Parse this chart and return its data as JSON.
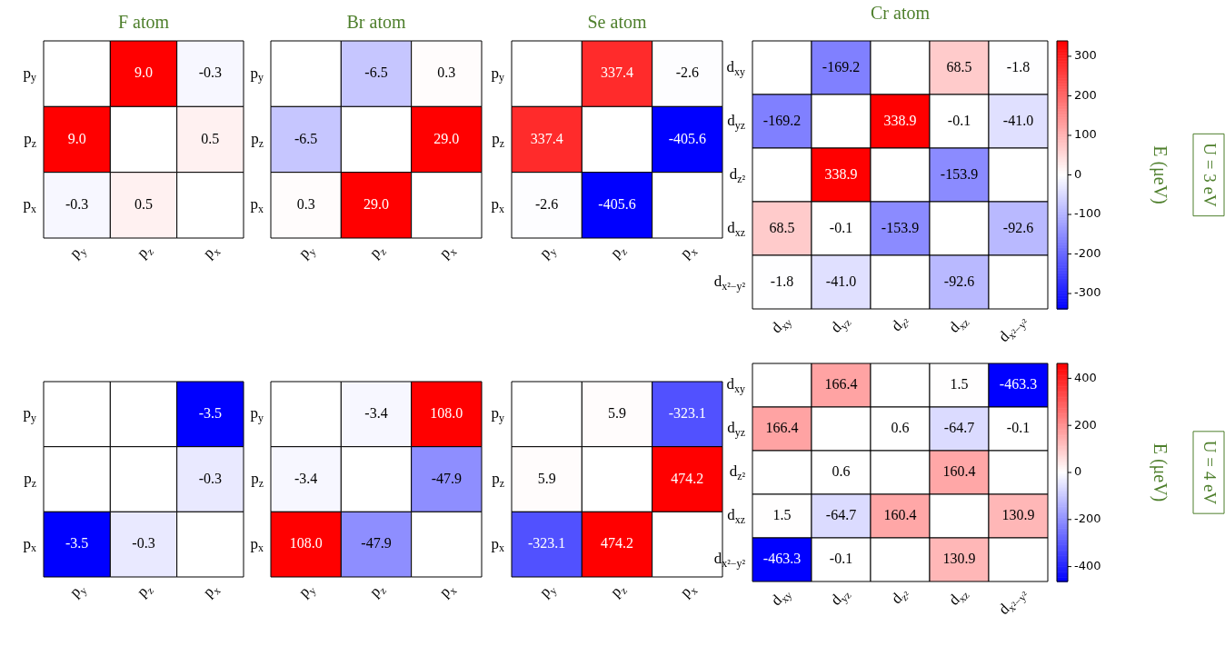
{
  "chart_data": [
    {
      "type": "heatmap",
      "title": "F atom",
      "categories": [
        "p$_{y}$",
        "p$_{z}$",
        "p$_{x}$"
      ],
      "y_categories": [
        "p$_{y}$",
        "p$_{z}$",
        "p$_{x}$"
      ],
      "cells": [
        [
          null,
          9.0,
          -0.3
        ],
        [
          9.0,
          null,
          0.5
        ],
        [
          -0.3,
          0.5,
          null
        ]
      ],
      "cell_labels": [
        [
          null,
          "9.0",
          "-0.3"
        ],
        [
          "9.0",
          null,
          "0.5"
        ],
        [
          "-0.3",
          "0.5",
          null
        ]
      ]
    },
    {
      "type": "heatmap",
      "title": "Br atom",
      "categories": [
        "p$_{y}$",
        "p$_{z}$",
        "p$_{x}$"
      ],
      "y_categories": [
        "p$_{y}$",
        "p$_{z}$",
        "p$_{x}$"
      ],
      "cells": [
        [
          null,
          -6.5,
          0.3
        ],
        [
          -6.5,
          null,
          29.0
        ],
        [
          0.3,
          29.0,
          null
        ]
      ],
      "cell_labels": [
        [
          null,
          "-6.5",
          "0.3"
        ],
        [
          "-6.5",
          null,
          "29.0"
        ],
        [
          "0.3",
          "29.0",
          null
        ]
      ]
    },
    {
      "type": "heatmap",
      "title": "Se atom",
      "categories": [
        "p$_{y}$",
        "p$_{z}$",
        "p$_{x}$"
      ],
      "y_categories": [
        "p$_{y}$",
        "p$_{z}$",
        "p$_{x}$"
      ],
      "cells": [
        [
          null,
          337.4,
          -2.6
        ],
        [
          337.4,
          null,
          -405.6
        ],
        [
          -2.6,
          -405.6,
          null
        ]
      ],
      "cell_labels": [
        [
          null,
          "337.4",
          "-2.6"
        ],
        [
          "337.4",
          null,
          "-405.6"
        ],
        [
          "-2.6",
          "-405.6",
          null
        ]
      ]
    },
    {
      "type": "heatmap",
      "title": "Cr atom",
      "categories": [
        "d$_{xy}$",
        "d$_{yz}$",
        "d$_{z²}$",
        "d$_{xz}$",
        "d$_{x²−y²}$"
      ],
      "y_categories": [
        "d$_{xy}$",
        "d$_{yz}$",
        "d$_{z²}$",
        "d$_{xz}$",
        "d$_{x²−y²}$"
      ],
      "cells": [
        [
          null,
          -169.2,
          null,
          68.5,
          -1.8
        ],
        [
          -169.2,
          null,
          338.9,
          -0.1,
          -41.0
        ],
        [
          null,
          338.9,
          null,
          -153.9,
          null
        ],
        [
          68.5,
          -0.1,
          -153.9,
          null,
          -92.6
        ],
        [
          -1.8,
          -41.0,
          null,
          -92.6,
          null
        ]
      ],
      "cell_labels": [
        [
          null,
          "-169.2",
          null,
          "68.5",
          "-1.8"
        ],
        [
          "-169.2",
          null,
          "338.9",
          "-0.1",
          "-41.0"
        ],
        [
          null,
          "338.9",
          null,
          "-153.9",
          null
        ],
        [
          "68.5",
          "-0.1",
          "-153.9",
          null,
          "-92.6"
        ],
        [
          "-1.8",
          "-41.0",
          null,
          "-92.6",
          null
        ]
      ],
      "clim": [
        -338.9,
        338.9
      ],
      "cticks": [
        -300,
        -200,
        -100,
        0,
        100,
        200,
        300
      ],
      "clabel": "E (μeV)",
      "annotations": [
        "U = 3 eV"
      ]
    },
    {
      "type": "heatmap",
      "categories": [
        "p$_{y}$",
        "p$_{z}$",
        "p$_{x}$"
      ],
      "y_categories": [
        "p$_{y}$",
        "p$_{z}$",
        "p$_{x}$"
      ],
      "cells": [
        [
          null,
          null,
          -3.5
        ],
        [
          null,
          null,
          -0.3
        ],
        [
          -3.5,
          -0.3,
          null
        ]
      ],
      "cell_labels": [
        [
          null,
          null,
          "-3.5"
        ],
        [
          null,
          null,
          "-0.3"
        ],
        [
          "-3.5",
          "-0.3",
          null
        ]
      ]
    },
    {
      "type": "heatmap",
      "categories": [
        "p$_{y}$",
        "p$_{z}$",
        "p$_{x}$"
      ],
      "y_categories": [
        "p$_{y}$",
        "p$_{z}$",
        "p$_{x}$"
      ],
      "cells": [
        [
          null,
          -3.4,
          108.0
        ],
        [
          -3.4,
          null,
          -47.9
        ],
        [
          108.0,
          -47.9,
          null
        ]
      ],
      "cell_labels": [
        [
          null,
          "-3.4",
          "108.0"
        ],
        [
          "-3.4",
          null,
          "-47.9"
        ],
        [
          "108.0",
          "-47.9",
          null
        ]
      ]
    },
    {
      "type": "heatmap",
      "categories": [
        "p$_{y}$",
        "p$_{z}$",
        "p$_{x}$"
      ],
      "y_categories": [
        "p$_{y}$",
        "p$_{z}$",
        "p$_{x}$"
      ],
      "cells": [
        [
          null,
          5.9,
          -323.1
        ],
        [
          5.9,
          null,
          474.2
        ],
        [
          -323.1,
          474.2,
          null
        ]
      ],
      "cell_labels": [
        [
          null,
          "5.9",
          "-323.1"
        ],
        [
          "5.9",
          null,
          "474.2"
        ],
        [
          "-323.1",
          "474.2",
          null
        ]
      ]
    },
    {
      "type": "heatmap",
      "categories": [
        "d$_{xy}$",
        "d$_{yz}$",
        "d$_{z²}$",
        "d$_{xz}$",
        "d$_{x²−y²}$"
      ],
      "y_categories": [
        "d$_{xy}$",
        "d$_{yz}$",
        "d$_{z²}$",
        "d$_{xz}$",
        "d$_{x²−y²}$"
      ],
      "cells": [
        [
          null,
          166.4,
          null,
          1.5,
          -463.3
        ],
        [
          166.4,
          null,
          0.6,
          -64.7,
          -0.1
        ],
        [
          null,
          0.6,
          null,
          160.4,
          null
        ],
        [
          1.5,
          -64.7,
          160.4,
          null,
          130.9
        ],
        [
          -463.3,
          -0.1,
          null,
          130.9,
          null
        ]
      ],
      "cell_labels": [
        [
          null,
          "166.4",
          null,
          "1.5",
          "-463.3"
        ],
        [
          "166.4",
          null,
          "0.6",
          "-64.7",
          "-0.1"
        ],
        [
          null,
          "0.6",
          null,
          "160.4",
          null
        ],
        [
          "1.5",
          "-64.7",
          "160.4",
          null,
          "130.9"
        ],
        [
          "-463.3",
          "-0.1",
          null,
          "130.9",
          null
        ]
      ],
      "clim": [
        -463.3,
        463.3
      ],
      "cticks": [
        -400,
        -200,
        0,
        200,
        400
      ],
      "clabel": "E (μeV)",
      "annotations": [
        "U = 4 eV"
      ]
    }
  ]
}
